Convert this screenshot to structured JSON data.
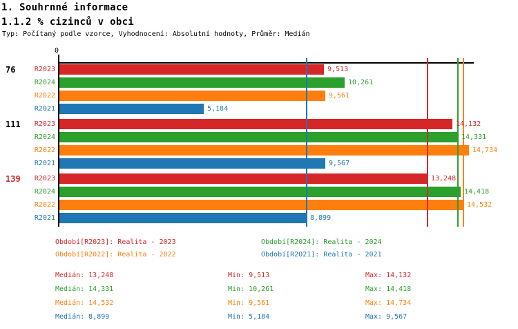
{
  "header": {
    "title": "1. Souhrnné informace",
    "subtitle": "1.1.2 % cizinců v obci",
    "meta": "Typ: Počítaný podle vzorce, Vyhodnocení: Absolutní hodnoty, Průměr: Medián"
  },
  "colors": {
    "R2023": "#d62728",
    "R2024": "#2ca02c",
    "R2022": "#ff7f0e",
    "R2021": "#1f77b4",
    "axis": "#000000",
    "group_label_default": "#000000",
    "group_label_highlight": "#d62728"
  },
  "chart_data": {
    "type": "bar",
    "orientation": "horizontal",
    "title": "1.1.2 % cizinců v obci",
    "x_axis": {
      "tick_labels": [
        "0"
      ],
      "xlim": [
        0,
        14900
      ],
      "grid": false
    },
    "series_order": [
      "R2023",
      "R2024",
      "R2022",
      "R2021"
    ],
    "groups": [
      {
        "label": "76",
        "highlight": false,
        "bars": [
          {
            "series": "R2023",
            "value": 9513,
            "display": "9,513"
          },
          {
            "series": "R2024",
            "value": 10261,
            "display": "10,261"
          },
          {
            "series": "R2022",
            "value": 9561,
            "display": "9,561"
          },
          {
            "series": "R2021",
            "value": 5184,
            "display": "5,184"
          }
        ]
      },
      {
        "label": "111",
        "highlight": false,
        "bars": [
          {
            "series": "R2023",
            "value": 14132,
            "display": "14,132"
          },
          {
            "series": "R2024",
            "value": 14331,
            "display": "14,331"
          },
          {
            "series": "R2022",
            "value": 14734,
            "display": "14,734"
          },
          {
            "series": "R2021",
            "value": 9567,
            "display": "9,567"
          }
        ]
      },
      {
        "label": "139",
        "highlight": true,
        "bars": [
          {
            "series": "R2023",
            "value": 13248,
            "display": "13,248"
          },
          {
            "series": "R2024",
            "value": 14418,
            "display": "14,418"
          },
          {
            "series": "R2022",
            "value": 14532,
            "display": "14,532"
          },
          {
            "series": "R2021",
            "value": 8899,
            "display": "8,899"
          }
        ]
      }
    ],
    "median_lines": [
      {
        "series": "R2021",
        "value": 8899
      },
      {
        "series": "R2023",
        "value": 13248
      },
      {
        "series": "R2024",
        "value": 14331
      },
      {
        "series": "R2022",
        "value": 14532
      }
    ]
  },
  "legend": [
    {
      "series": "R2023",
      "text": "Období[R2023]: Realita - 2023",
      "col": 0,
      "row": 0
    },
    {
      "series": "R2024",
      "text": "Období[R2024]: Realita - 2024",
      "col": 1,
      "row": 0
    },
    {
      "series": "R2022",
      "text": "Období[R2022]: Realita - 2022",
      "col": 0,
      "row": 1
    },
    {
      "series": "R2021",
      "text": "Období[R2021]: Realita - 2021",
      "col": 1,
      "row": 1
    }
  ],
  "stats": [
    {
      "series": "R2023",
      "median": "Medián: 13,248",
      "min": "Min: 9,513",
      "max": "Max: 14,132"
    },
    {
      "series": "R2024",
      "median": "Medián: 14,331",
      "min": "Min: 10,261",
      "max": "Max: 14,418"
    },
    {
      "series": "R2022",
      "median": "Medián: 14,532",
      "min": "Min: 9,561",
      "max": "Max: 14,734"
    },
    {
      "series": "R2021",
      "median": "Medián: 8,899",
      "min": "Min: 5,184",
      "max": "Max: 9,567"
    }
  ]
}
